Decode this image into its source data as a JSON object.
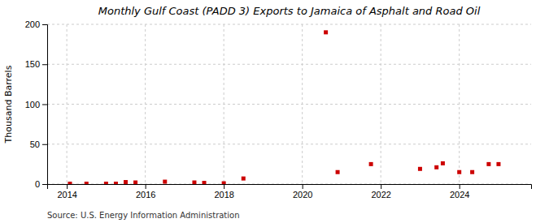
{
  "chart_data": {
    "type": "scatter",
    "title": "Monthly Gulf Coast (PADD 3) Exports to Jamaica of Asphalt and Road Oil",
    "ylabel": "Thousand Barrels",
    "annotations": [
      "Source: U.S. Energy Information Administration"
    ],
    "x": [
      2014.08,
      2014.5,
      2015.0,
      2015.25,
      2015.5,
      2015.75,
      2016.5,
      2017.25,
      2017.5,
      2018.0,
      2018.5,
      2020.6,
      2020.9,
      2021.75,
      2023.0,
      2023.42,
      2023.58,
      2024.0,
      2024.33,
      2024.75,
      2025.0
    ],
    "values": [
      0.5,
      0.5,
      0.5,
      0.5,
      2.5,
      2.0,
      3.0,
      2.0,
      1.5,
      1.0,
      7.0,
      190.0,
      15.0,
      25.0,
      19.0,
      21.0,
      26.0,
      15.0,
      15.0,
      25.0,
      25.0
    ],
    "color": "#cc0000",
    "marker": "square",
    "xlim": [
      2013.5,
      2025.83
    ],
    "xticks": [
      2014,
      2016,
      2018,
      2020,
      2022,
      2024
    ],
    "ylim": [
      0,
      200
    ],
    "yticks": [
      0,
      50,
      100,
      150,
      200
    ],
    "grid": true
  }
}
